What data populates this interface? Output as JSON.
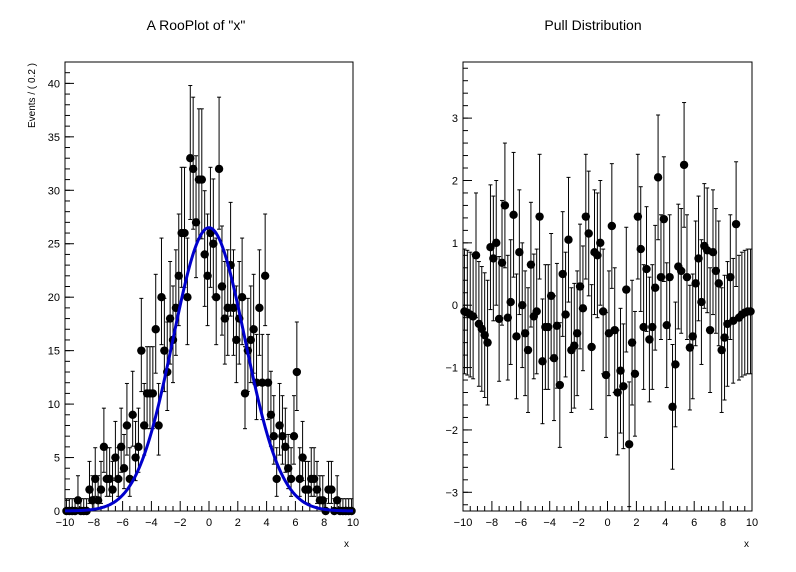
{
  "chart_data": [
    {
      "type": "scatter",
      "title": "A RooPlot of \"x\"",
      "xlabel": "x",
      "ylabel": "Events / ( 0.2 )",
      "xlim": [
        -10,
        10
      ],
      "ylim": [
        0,
        42
      ],
      "xticks": [
        "−10",
        "−8",
        "−6",
        "−4",
        "−2",
        "0",
        "2",
        "4",
        "6",
        "8",
        "10"
      ],
      "yticks": [
        "0",
        "5",
        "10",
        "15",
        "20",
        "25",
        "30",
        "35",
        "40"
      ],
      "series": [
        {
          "kind": "points-with-errors",
          "color": "#000000",
          "x": [
            -9.9,
            -9.7,
            -9.5,
            -9.3,
            -9.1,
            -8.9,
            -8.7,
            -8.5,
            -8.3,
            -8.1,
            -7.9,
            -7.7,
            -7.5,
            -7.3,
            -7.1,
            -6.9,
            -6.7,
            -6.5,
            -6.3,
            -6.1,
            -5.9,
            -5.7,
            -5.5,
            -5.3,
            -5.1,
            -4.9,
            -4.7,
            -4.5,
            -4.3,
            -4.1,
            -3.9,
            -3.7,
            -3.5,
            -3.3,
            -3.1,
            -2.9,
            -2.7,
            -2.5,
            -2.3,
            -2.1,
            -1.9,
            -1.7,
            -1.5,
            -1.3,
            -1.1,
            -0.9,
            -0.7,
            -0.5,
            -0.3,
            -0.1,
            0.1,
            0.3,
            0.5,
            0.7,
            0.9,
            1.1,
            1.3,
            1.5,
            1.7,
            1.9,
            2.1,
            2.3,
            2.5,
            2.7,
            2.9,
            3.1,
            3.3,
            3.5,
            3.7,
            3.9,
            4.1,
            4.3,
            4.5,
            4.7,
            4.9,
            5.1,
            5.3,
            5.5,
            5.7,
            5.9,
            6.1,
            6.3,
            6.5,
            6.7,
            6.9,
            7.1,
            7.3,
            7.5,
            7.7,
            7.9,
            8.1,
            8.3,
            8.5,
            8.7,
            8.9,
            9.1,
            9.3,
            9.5,
            9.7,
            9.9
          ],
          "y": [
            0,
            0,
            0,
            0,
            1,
            0,
            0,
            0,
            2,
            1,
            3,
            1,
            2,
            6,
            3,
            3,
            2,
            5,
            3,
            6,
            4,
            8,
            3,
            9,
            5,
            6,
            15,
            8,
            11,
            11,
            11,
            17,
            8,
            20,
            15,
            13,
            18,
            16,
            19,
            22,
            26,
            26,
            20,
            33,
            32,
            27,
            31,
            31,
            24,
            22,
            26,
            25,
            20,
            32,
            21,
            18,
            19,
            23,
            19,
            16,
            18,
            20,
            11,
            15,
            16,
            17,
            12,
            19,
            12,
            22,
            12,
            9,
            7,
            3,
            8,
            7,
            6,
            4,
            3,
            7,
            13,
            3,
            5,
            2,
            2,
            3,
            3,
            2,
            1,
            1,
            0,
            2,
            2,
            0,
            1,
            0,
            0,
            0,
            0,
            0
          ],
          "yerr_up": [
            1.15,
            1.15,
            1.15,
            1.15,
            2.3,
            1.15,
            1.15,
            1.15,
            2.64,
            2.3,
            2.92,
            2.3,
            2.64,
            3.62,
            2.92,
            2.92,
            2.64,
            3.38,
            2.92,
            3.62,
            3.16,
            3.93,
            2.92,
            4.07,
            3.38,
            3.62,
            4.89,
            3.93,
            4.37,
            4.37,
            4.37,
            5.14,
            3.93,
            5.53,
            4.89,
            4.68,
            5.34,
            5.05,
            5.43,
            5.78,
            6.15,
            6.15,
            5.53,
            6.8,
            6.71,
            6.23,
            6.62,
            6.62,
            5.96,
            5.78,
            6.15,
            6.06,
            5.53,
            6.71,
            5.66,
            5.34,
            5.43,
            5.87,
            5.43,
            5.05,
            5.34,
            5.53,
            4.37,
            4.89,
            5.05,
            5.14,
            4.52,
            5.43,
            4.52,
            5.78,
            4.52,
            4.07,
            3.79,
            2.92,
            3.93,
            3.79,
            3.62,
            3.16,
            2.92,
            3.79,
            4.68,
            2.92,
            3.38,
            2.64,
            2.64,
            2.92,
            2.92,
            2.64,
            2.3,
            2.3,
            1.15,
            2.64,
            2.64,
            1.15,
            2.3,
            1.15,
            1.15,
            1.15,
            1.15,
            1.15
          ],
          "yerr_down": [
            0,
            0,
            0,
            0,
            0.83,
            0,
            0,
            0,
            1.29,
            0.83,
            1.63,
            0.83,
            1.29,
            2.38,
            1.63,
            1.63,
            1.29,
            2.16,
            1.63,
            2.38,
            1.91,
            2.77,
            1.63,
            2.94,
            2.16,
            2.38,
            3.83,
            2.77,
            3.3,
            3.3,
            3.3,
            4.11,
            2.77,
            4.44,
            3.83,
            3.6,
            4.26,
            3.99,
            4.44,
            4.66,
            5.08,
            5.08,
            4.44,
            5.73,
            5.64,
            5.17,
            5.54,
            5.54,
            4.86,
            4.66,
            5.08,
            4.98,
            4.44,
            5.64,
            4.55,
            4.26,
            4.44,
            4.77,
            4.44,
            3.99,
            4.26,
            4.44,
            3.3,
            3.83,
            3.99,
            4.11,
            3.45,
            4.44,
            3.45,
            4.66,
            3.45,
            2.94,
            2.62,
            1.63,
            2.77,
            2.62,
            2.38,
            1.91,
            1.63,
            2.62,
            3.6,
            1.63,
            2.16,
            1.29,
            1.29,
            1.63,
            1.63,
            1.29,
            0.83,
            0.83,
            0,
            1.29,
            1.29,
            0,
            0.83,
            0,
            0,
            0,
            0,
            0
          ]
        },
        {
          "kind": "curve",
          "color": "#0000cc",
          "model": "gaussian",
          "mean": 0,
          "sigma": 2.5,
          "peak": 26.5
        }
      ]
    },
    {
      "type": "scatter",
      "title": "Pull Distribution",
      "xlabel": "x",
      "ylabel": "",
      "xlim": [
        -10,
        10
      ],
      "ylim": [
        -3.3,
        3.9
      ],
      "xticks": [
        "−10",
        "−8",
        "−6",
        "−4",
        "−2",
        "0",
        "2",
        "4",
        "6",
        "8",
        "10"
      ],
      "yticks": [
        "−3",
        "−2",
        "−1",
        "0",
        "1",
        "2",
        "3"
      ],
      "series": [
        {
          "kind": "points-with-unit-errors",
          "color": "#000000",
          "x": [
            -9.9,
            -9.7,
            -9.5,
            -9.3,
            -9.1,
            -8.9,
            -8.7,
            -8.5,
            -8.3,
            -8.1,
            -7.9,
            -7.7,
            -7.5,
            -7.3,
            -7.1,
            -6.9,
            -6.7,
            -6.5,
            -6.3,
            -6.1,
            -5.9,
            -5.7,
            -5.5,
            -5.3,
            -5.1,
            -4.9,
            -4.7,
            -4.5,
            -4.3,
            -4.1,
            -3.9,
            -3.7,
            -3.5,
            -3.3,
            -3.1,
            -2.9,
            -2.7,
            -2.5,
            -2.3,
            -2.1,
            -1.9,
            -1.7,
            -1.5,
            -1.3,
            -1.1,
            -0.9,
            -0.7,
            -0.5,
            -0.3,
            -0.1,
            0.1,
            0.3,
            0.5,
            0.7,
            0.9,
            1.1,
            1.3,
            1.5,
            1.7,
            1.9,
            2.1,
            2.3,
            2.5,
            2.7,
            2.9,
            3.1,
            3.3,
            3.5,
            3.7,
            3.9,
            4.1,
            4.3,
            4.5,
            4.7,
            4.9,
            5.1,
            5.3,
            5.5,
            5.7,
            5.9,
            6.1,
            6.3,
            6.5,
            6.7,
            6.9,
            7.1,
            7.3,
            7.5,
            7.7,
            7.9,
            8.1,
            8.3,
            8.5,
            8.7,
            8.9,
            9.1,
            9.3,
            9.5,
            9.7,
            9.9
          ],
          "y": [
            -0.1,
            -0.12,
            -0.15,
            -0.18,
            0.8,
            -0.3,
            -0.38,
            -0.48,
            -0.6,
            0.93,
            0.75,
            1.0,
            -0.22,
            0.68,
            1.6,
            -0.2,
            0.05,
            1.45,
            -0.5,
            0.85,
            0.0,
            -0.45,
            -0.72,
            0.65,
            -0.18,
            -0.1,
            1.42,
            -0.9,
            -0.35,
            -0.35,
            0.15,
            -0.85,
            -0.33,
            -1.28,
            0.5,
            -0.15,
            1.05,
            -0.72,
            -0.65,
            -0.45,
            0.3,
            -0.05,
            1.42,
            1.15,
            -0.67,
            0.85,
            0.8,
            1.0,
            -0.1,
            -1.12,
            -0.45,
            1.27,
            -0.4,
            -1.4,
            -1.05,
            -1.3,
            0.25,
            -2.23,
            -0.6,
            -1.1,
            1.42,
            0.9,
            -0.35,
            0.58,
            -0.55,
            -0.35,
            0.28,
            2.05,
            0.45,
            1.38,
            -0.32,
            0.45,
            -1.63,
            -0.95,
            0.62,
            0.55,
            2.25,
            0.45,
            -0.68,
            -0.5,
            0.35,
            0.75,
            0.05,
            0.95,
            0.88,
            -0.4,
            0.85,
            0.55,
            0.35,
            -0.72,
            -0.52,
            -0.3,
            0.45,
            -0.25,
            1.3,
            -0.2,
            -0.15,
            -0.12,
            -0.1,
            -0.1
          ]
        }
      ]
    }
  ]
}
